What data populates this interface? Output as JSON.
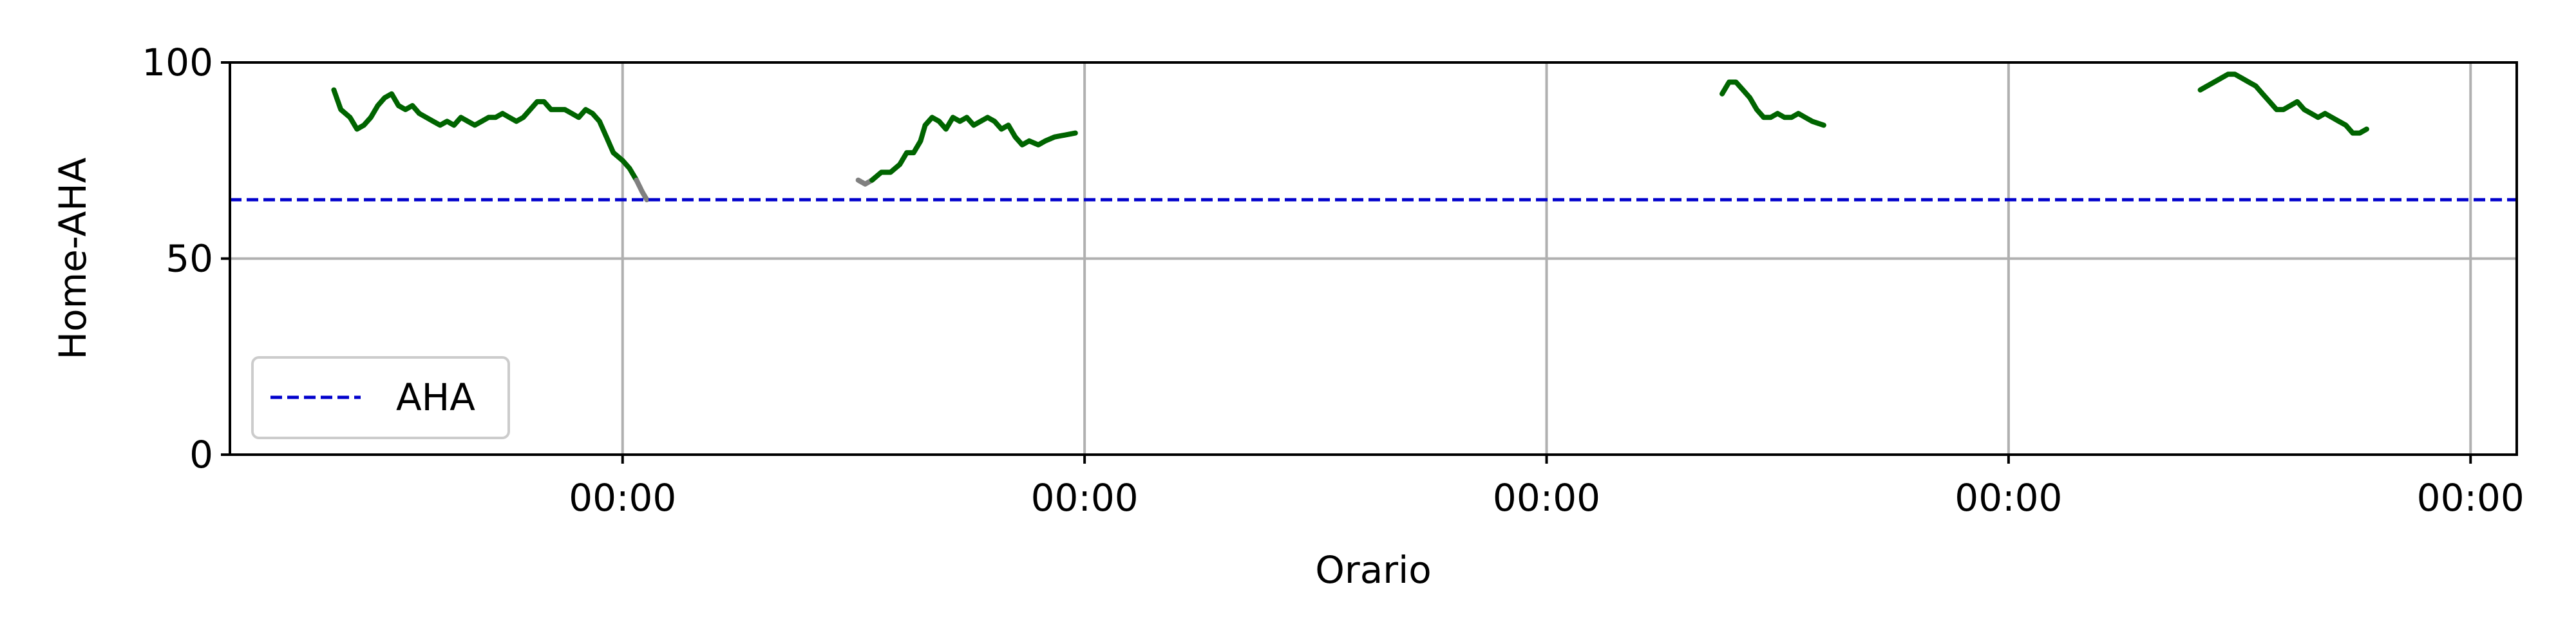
{
  "chart_data": {
    "type": "line",
    "title": "",
    "xlabel": "Orario",
    "ylabel": "Home-AHA",
    "ylim": [
      0,
      100
    ],
    "y_ticks": [
      0,
      50,
      100
    ],
    "x_range_hours": [
      -17,
      82
    ],
    "x_ticks": [
      {
        "hour": 0,
        "label": "00:00"
      },
      {
        "hour": 20,
        "label": "00:00"
      },
      {
        "hour": 40,
        "label": "00:00"
      },
      {
        "hour": 60,
        "label": "00:00"
      },
      {
        "hour": 80,
        "label": "00:00"
      }
    ],
    "grid": true,
    "legend": {
      "position": "lower-left",
      "entries": [
        "AHA"
      ]
    },
    "reference_line": {
      "name": "AHA",
      "y": 65,
      "color": "#0000cc",
      "style": "dashed"
    },
    "series": [
      {
        "color": "#006400",
        "points": [
          [
            -12.5,
            93
          ],
          [
            -12.2,
            88
          ],
          [
            -11.8,
            86
          ],
          [
            -11.5,
            83
          ],
          [
            -11.2,
            84
          ],
          [
            -10.9,
            86
          ],
          [
            -10.6,
            89
          ],
          [
            -10.3,
            91
          ],
          [
            -10,
            92
          ],
          [
            -9.7,
            89
          ],
          [
            -9.4,
            88
          ],
          [
            -9.1,
            89
          ],
          [
            -8.8,
            87
          ],
          [
            -8.5,
            86
          ],
          [
            -8.2,
            85
          ],
          [
            -7.9,
            84
          ],
          [
            -7.6,
            85
          ],
          [
            -7.3,
            84
          ],
          [
            -7,
            86
          ],
          [
            -6.7,
            85
          ],
          [
            -6.4,
            84
          ],
          [
            -6.1,
            85
          ],
          [
            -5.8,
            86
          ],
          [
            -5.5,
            86
          ],
          [
            -5.2,
            87
          ],
          [
            -4.9,
            86
          ],
          [
            -4.6,
            85
          ],
          [
            -4.3,
            86
          ],
          [
            -4,
            88
          ],
          [
            -3.7,
            90
          ],
          [
            -3.4,
            90
          ],
          [
            -3.1,
            88
          ],
          [
            -2.8,
            88
          ],
          [
            -2.5,
            88
          ],
          [
            -2.2,
            87
          ],
          [
            -1.9,
            86
          ],
          [
            -1.6,
            88
          ],
          [
            -1.3,
            87
          ],
          [
            -1,
            85
          ],
          [
            -0.7,
            81
          ],
          [
            -0.4,
            77
          ],
          [
            0,
            75
          ],
          [
            0.3,
            73
          ],
          [
            0.6,
            70
          ]
        ]
      },
      {
        "color": "#808080",
        "points": [
          [
            0.6,
            70
          ],
          [
            0.85,
            67
          ],
          [
            1.05,
            65
          ]
        ]
      },
      {
        "color": "#808080",
        "points": [
          [
            10.2,
            70
          ],
          [
            10.5,
            69
          ],
          [
            10.8,
            70
          ]
        ]
      },
      {
        "color": "#006400",
        "points": [
          [
            10.8,
            70
          ],
          [
            11.2,
            72
          ],
          [
            11.6,
            72
          ],
          [
            12,
            74
          ],
          [
            12.3,
            77
          ],
          [
            12.6,
            77
          ],
          [
            12.9,
            80
          ],
          [
            13.1,
            84
          ],
          [
            13.4,
            86
          ],
          [
            13.7,
            85
          ],
          [
            14,
            83
          ],
          [
            14.3,
            86
          ],
          [
            14.6,
            85
          ],
          [
            14.9,
            86
          ],
          [
            15.2,
            84
          ],
          [
            15.5,
            85
          ],
          [
            15.8,
            86
          ],
          [
            16.1,
            85
          ],
          [
            16.4,
            83
          ],
          [
            16.7,
            84
          ],
          [
            17,
            81
          ],
          [
            17.3,
            79
          ],
          [
            17.6,
            80
          ],
          [
            18,
            79
          ],
          [
            18.3,
            80
          ],
          [
            18.7,
            81
          ],
          [
            19.6,
            82
          ]
        ]
      },
      {
        "color": "#006400",
        "points": [
          [
            47.6,
            92
          ],
          [
            47.9,
            95
          ],
          [
            48.2,
            95
          ],
          [
            48.5,
            93
          ],
          [
            48.8,
            91
          ],
          [
            49.1,
            88
          ],
          [
            49.4,
            86
          ],
          [
            49.7,
            86
          ],
          [
            50,
            87
          ],
          [
            50.3,
            86
          ],
          [
            50.6,
            86
          ],
          [
            50.9,
            87
          ],
          [
            51.2,
            86
          ],
          [
            51.5,
            85
          ],
          [
            52,
            84
          ]
        ]
      },
      {
        "color": "#006400",
        "points": [
          [
            68.3,
            93
          ],
          [
            68.6,
            94
          ],
          [
            68.9,
            95
          ],
          [
            69.2,
            96
          ],
          [
            69.5,
            97
          ],
          [
            69.8,
            97
          ],
          [
            70.1,
            96
          ],
          [
            70.4,
            95
          ],
          [
            70.7,
            94
          ],
          [
            71,
            92
          ],
          [
            71.3,
            90
          ],
          [
            71.6,
            88
          ],
          [
            71.9,
            88
          ],
          [
            72.2,
            89
          ],
          [
            72.5,
            90
          ],
          [
            72.8,
            88
          ],
          [
            73.1,
            87
          ],
          [
            73.4,
            86
          ],
          [
            73.7,
            87
          ],
          [
            74,
            86
          ],
          [
            74.3,
            85
          ],
          [
            74.6,
            84
          ],
          [
            74.9,
            82
          ],
          [
            75.2,
            82
          ],
          [
            75.5,
            83
          ]
        ]
      }
    ]
  }
}
